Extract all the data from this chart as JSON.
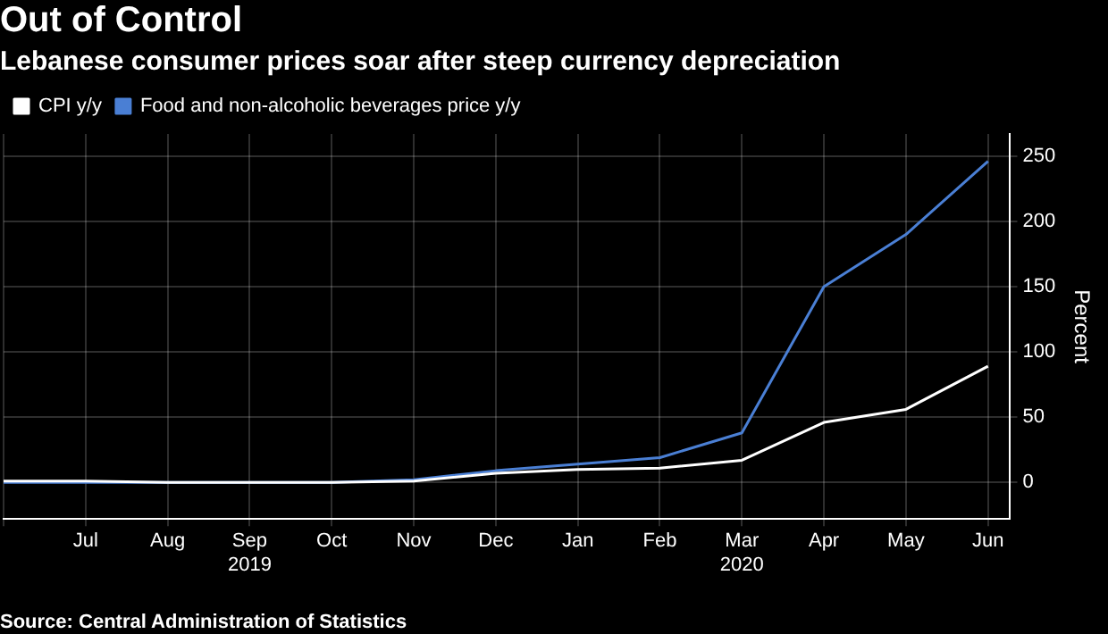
{
  "chart_data": {
    "type": "line",
    "title": "Out of Control",
    "subtitle": "Lebanese consumer prices soar after steep currency depreciation",
    "ylabel": "Percent",
    "categories": [
      null,
      "Jul",
      "Aug",
      "Sep\n2019",
      "Oct",
      "Nov",
      "Dec",
      "Jan",
      "Feb",
      "Mar\n2020",
      "Apr",
      "May",
      "Jun"
    ],
    "series": [
      {
        "name": "CPI y/y",
        "color": "#ffffff",
        "values": [
          1,
          1,
          0,
          0,
          0,
          1,
          7,
          10,
          11,
          17,
          46,
          56,
          89
        ]
      },
      {
        "name": "Food and non-alcoholic beverages price y/y",
        "color": "#4a7fd4",
        "values": [
          0,
          0,
          0,
          0,
          0,
          2,
          9,
          14,
          19,
          38,
          150,
          190,
          246
        ]
      }
    ],
    "ylim": [
      -28,
      267
    ],
    "yticks": [
      0,
      50,
      100,
      150,
      200,
      250
    ],
    "grid": true,
    "legend": "top left",
    "marker": "none",
    "line_style": "solid",
    "annotations": [
      "Source: Central Administration of Statistics"
    ]
  }
}
